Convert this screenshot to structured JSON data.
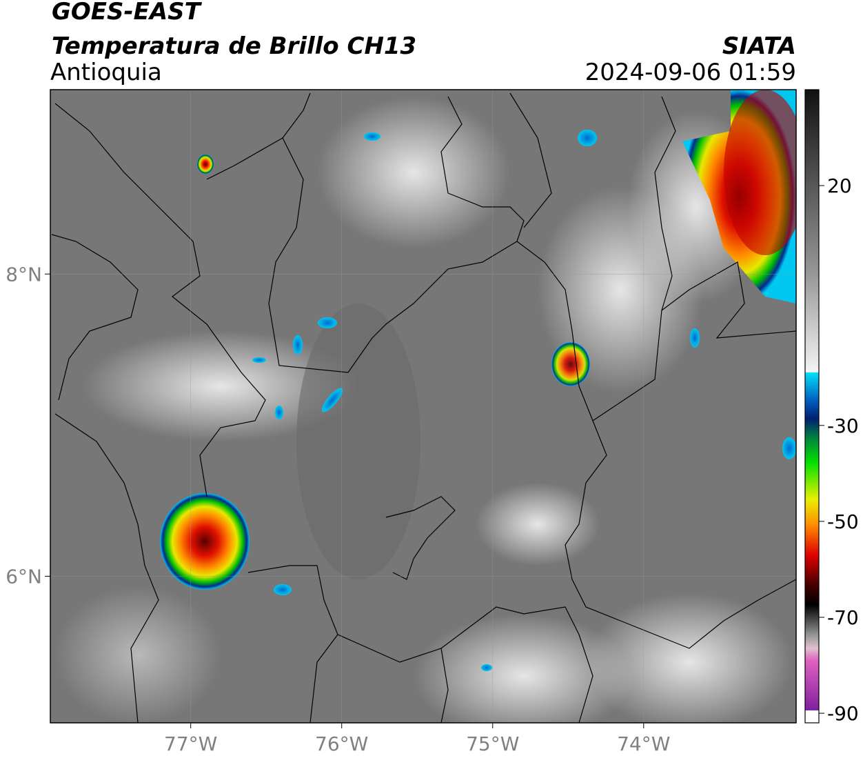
{
  "header": {
    "title": "GOES-EAST",
    "subtitle": "Temperatura de Brillo CH13",
    "region": "Antioquia",
    "source": "SIATA",
    "datetime": "2024-09-06 01:59"
  },
  "map": {
    "xlim": [
      -77.93,
      -72.99
    ],
    "ylim": [
      5.03,
      9.22
    ],
    "xticks": [
      {
        "value": -77,
        "label": "77°W"
      },
      {
        "value": -76,
        "label": "76°W"
      },
      {
        "value": -75,
        "label": "75°W"
      },
      {
        "value": -74,
        "label": "74°W"
      }
    ],
    "yticks": [
      {
        "value": 8,
        "label": "8°N"
      },
      {
        "value": 6,
        "label": "6°N"
      }
    ]
  },
  "colorbar": {
    "range": [
      -92,
      40
    ],
    "ticks": [
      20,
      -30,
      -50,
      -70,
      -90
    ]
  }
}
